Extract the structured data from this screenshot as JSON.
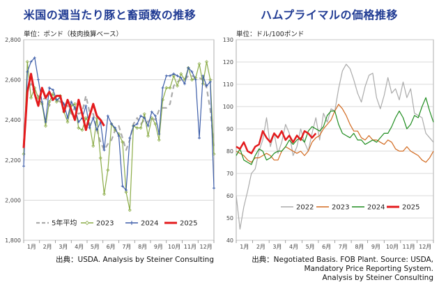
{
  "left": {
    "title": "米国の週当たり豚と畜頭数の推移",
    "unit": "単位：ポンド（枝肉換算ベース）",
    "source": "出典：USDA. Analysis by Steiner Consulting"
  },
  "right": {
    "title": "ハムプライマルの価格推移",
    "unit": "単位：ドル/100ポンド",
    "source_lines": [
      "出典：Negotiated Basis. FOB Plant. Source: USDA,",
      "Mandatory Price Reporting System.",
      "Analysis by Steiner Consulting"
    ]
  },
  "chart_data": [
    {
      "type": "line",
      "title": "米国の週当たり豚と畜頭数の推移",
      "ylabel": "単位：ポンド（枝肉換算ベース）",
      "ylim": [
        1800,
        2800
      ],
      "yticks": [
        1800,
        2000,
        2200,
        2400,
        2600,
        2800
      ],
      "ytick_labels": [
        "1,800",
        "2,000",
        "2,200",
        "2,400",
        "2,600",
        "2,800"
      ],
      "xlim": [
        1,
        53
      ],
      "categories": [
        "1月",
        "2月",
        "3月",
        "4月",
        "5月",
        "6月",
        "7月",
        "8月",
        "9月",
        "10月",
        "11月",
        "12月"
      ],
      "grid": true,
      "legend_position": "bottom",
      "series": [
        {
          "name": "5年平均",
          "color": "#aaaaaa",
          "style": "dashed",
          "x": [
            1,
            2,
            3,
            4,
            5,
            6,
            7,
            8,
            9,
            10,
            11,
            12,
            13,
            14,
            15,
            16,
            17,
            18,
            19,
            20,
            21,
            22,
            23,
            24,
            25,
            26,
            27,
            28,
            29,
            30,
            31,
            32,
            33,
            34,
            35,
            36,
            37,
            38,
            39,
            40,
            41,
            42,
            43,
            44,
            45,
            46,
            47,
            48,
            49,
            50,
            51,
            52,
            53
          ],
          "y": [
            2280,
            2560,
            2580,
            2530,
            2520,
            2500,
            2510,
            2470,
            2510,
            2500,
            2490,
            2480,
            2470,
            2430,
            2460,
            2430,
            2440,
            2520,
            2440,
            2430,
            2350,
            2290,
            2250,
            2280,
            2300,
            2350,
            2370,
            2310,
            2250,
            2300,
            2380,
            2410,
            2380,
            2400,
            2390,
            2410,
            2400,
            2450,
            2460,
            2460,
            2480,
            2570,
            2590,
            2600,
            2600,
            2620,
            2620,
            2610,
            2610,
            2600,
            2560,
            2450,
            2270
          ]
        },
        {
          "name": "2023",
          "color": "#8aab46",
          "style": "solid",
          "marker": "diamond",
          "x": [
            1,
            2,
            3,
            4,
            5,
            6,
            7,
            8,
            9,
            10,
            11,
            12,
            13,
            14,
            15,
            16,
            17,
            18,
            19,
            20,
            21,
            22,
            23,
            24,
            25,
            26,
            27,
            28,
            29,
            30,
            31,
            32,
            33,
            34,
            35,
            36,
            37,
            38,
            39,
            40,
            41,
            42,
            43,
            44,
            45,
            46,
            47,
            48,
            49,
            50,
            51,
            52,
            53
          ],
          "y": [
            2230,
            2690,
            2510,
            2560,
            2510,
            2480,
            2370,
            2490,
            2530,
            2490,
            2520,
            2440,
            2390,
            2470,
            2480,
            2360,
            2350,
            2410,
            2380,
            2270,
            2410,
            2210,
            2030,
            2150,
            2380,
            2350,
            2330,
            2290,
            2040,
            1950,
            2370,
            2360,
            2360,
            2430,
            2320,
            2410,
            2380,
            2300,
            2500,
            2560,
            2560,
            2620,
            2570,
            2630,
            2600,
            2660,
            2600,
            2610,
            2680,
            2580,
            2690,
            2600,
            2230
          ]
        },
        {
          "name": "2024",
          "color": "#3b5ca8",
          "style": "solid",
          "marker": "plus",
          "x": [
            1,
            2,
            3,
            4,
            5,
            6,
            7,
            8,
            9,
            10,
            11,
            12,
            13,
            14,
            15,
            16,
            17,
            18,
            19,
            20,
            21,
            22,
            23,
            24,
            25,
            26,
            27,
            28,
            29,
            30,
            31,
            32,
            33,
            34,
            35,
            36,
            37,
            38,
            39,
            40,
            41,
            42,
            43,
            44,
            45,
            46,
            47,
            48,
            49,
            50,
            51,
            52,
            53
          ],
          "y": [
            2170,
            2640,
            2690,
            2710,
            2600,
            2490,
            2390,
            2560,
            2550,
            2500,
            2510,
            2480,
            2410,
            2490,
            2460,
            2390,
            2410,
            2470,
            2360,
            2410,
            2350,
            2390,
            2250,
            2420,
            2380,
            2360,
            2320,
            2070,
            2050,
            2310,
            2370,
            2380,
            2420,
            2410,
            2370,
            2440,
            2420,
            2330,
            2560,
            2620,
            2620,
            2630,
            2620,
            2610,
            2580,
            2660,
            2640,
            2600,
            2310,
            2620,
            2570,
            2590,
            2060
          ]
        },
        {
          "name": "2025",
          "color": "#e31a1c",
          "style": "solid",
          "width": 3,
          "x": [
            1,
            2,
            3,
            4,
            5,
            6,
            7,
            8,
            9,
            10,
            11,
            12,
            13,
            14,
            15,
            16,
            17,
            18,
            19,
            20,
            21,
            22,
            23
          ],
          "y": [
            2260,
            2540,
            2630,
            2530,
            2470,
            2560,
            2510,
            2540,
            2500,
            2520,
            2520,
            2440,
            2500,
            2450,
            2400,
            2500,
            2430,
            2350,
            2420,
            2480,
            2420,
            2400,
            2370
          ]
        }
      ]
    },
    {
      "type": "line",
      "title": "ハムプライマルの価格推移",
      "ylabel": "単位：ドル/100ポンド",
      "ylim": [
        40,
        130
      ],
      "yticks": [
        40,
        50,
        60,
        70,
        80,
        90,
        100,
        110,
        120,
        130
      ],
      "xlim": [
        1,
        53
      ],
      "categories": [
        "1月",
        "2月",
        "3月",
        "4月",
        "5月",
        "6月",
        "7月",
        "8月",
        "9月",
        "10月",
        "11月",
        "12月"
      ],
      "grid": true,
      "legend_position": "bottom",
      "series": [
        {
          "name": "2022",
          "color": "#aaaaaa",
          "style": "solid",
          "x": [
            1,
            2,
            3,
            4,
            5,
            6,
            7,
            8,
            9,
            10,
            11,
            12,
            13,
            14,
            15,
            16,
            17,
            18,
            19,
            20,
            21,
            22,
            23,
            24,
            25,
            26,
            27,
            28,
            29,
            30,
            31,
            32,
            33,
            34,
            35,
            36,
            37,
            38,
            39,
            40,
            41,
            42,
            43,
            44,
            45,
            46,
            47,
            48,
            49,
            50,
            51,
            52,
            53
          ],
          "y": [
            60,
            45,
            55,
            62,
            70,
            72,
            80,
            85,
            95,
            82,
            88,
            79,
            84,
            92,
            88,
            78,
            82,
            90,
            84,
            80,
            88,
            95,
            85,
            97,
            93,
            99,
            98,
            108,
            116,
            119,
            117,
            112,
            106,
            102,
            109,
            114,
            115,
            104,
            99,
            105,
            113,
            106,
            108,
            103,
            111,
            104,
            108,
            97,
            96,
            95,
            88,
            86,
            84
          ]
        },
        {
          "name": "2023",
          "color": "#d2691e",
          "style": "solid",
          "x": [
            1,
            2,
            3,
            4,
            5,
            6,
            7,
            8,
            9,
            10,
            11,
            12,
            13,
            14,
            15,
            16,
            17,
            18,
            19,
            20,
            21,
            22,
            23,
            24,
            25,
            26,
            27,
            28,
            29,
            30,
            31,
            32,
            33,
            34,
            35,
            36,
            37,
            38,
            39,
            40,
            41,
            42,
            43,
            44,
            45,
            46,
            47,
            48,
            49,
            50,
            51,
            52,
            53
          ],
          "y": [
            80,
            79,
            78,
            76,
            75,
            77,
            77,
            78,
            79,
            78,
            76,
            76,
            80,
            82,
            81,
            80,
            79,
            80,
            78,
            80,
            84,
            86,
            87,
            90,
            92,
            94,
            98,
            101,
            99,
            96,
            92,
            89,
            89,
            86,
            85,
            87,
            85,
            85,
            84,
            83,
            85,
            84,
            81,
            80,
            80,
            82,
            80,
            79,
            78,
            76,
            75,
            77,
            80
          ]
        },
        {
          "name": "2024",
          "color": "#1e8c1e",
          "style": "solid",
          "x": [
            1,
            2,
            3,
            4,
            5,
            6,
            7,
            8,
            9,
            10,
            11,
            12,
            13,
            14,
            15,
            16,
            17,
            18,
            19,
            20,
            21,
            22,
            23,
            24,
            25,
            26,
            27,
            28,
            29,
            30,
            31,
            32,
            33,
            34,
            35,
            36,
            37,
            38,
            39,
            40,
            41,
            42,
            43,
            44,
            45,
            46,
            47,
            48,
            49,
            50,
            51,
            52,
            53
          ],
          "y": [
            78,
            81,
            76,
            75,
            74,
            78,
            81,
            80,
            76,
            77,
            79,
            80,
            80,
            82,
            85,
            83,
            85,
            86,
            84,
            89,
            91,
            90,
            89,
            91,
            96,
            98,
            98,
            92,
            88,
            87,
            86,
            88,
            85,
            85,
            83,
            84,
            85,
            84,
            86,
            88,
            88,
            91,
            95,
            98,
            95,
            90,
            92,
            96,
            95,
            100,
            104,
            98,
            93
          ]
        },
        {
          "name": "2025",
          "color": "#e31a1c",
          "style": "solid",
          "width": 2.5,
          "x": [
            1,
            2,
            3,
            4,
            5,
            6,
            7,
            8,
            9,
            10,
            11,
            12,
            13,
            14,
            15,
            16,
            17,
            18,
            19,
            20,
            21,
            22
          ],
          "y": [
            82,
            81,
            84,
            80,
            79,
            82,
            83,
            89,
            86,
            84,
            88,
            86,
            89,
            85,
            87,
            84,
            87,
            85,
            89,
            88,
            86,
            88
          ]
        }
      ]
    }
  ]
}
